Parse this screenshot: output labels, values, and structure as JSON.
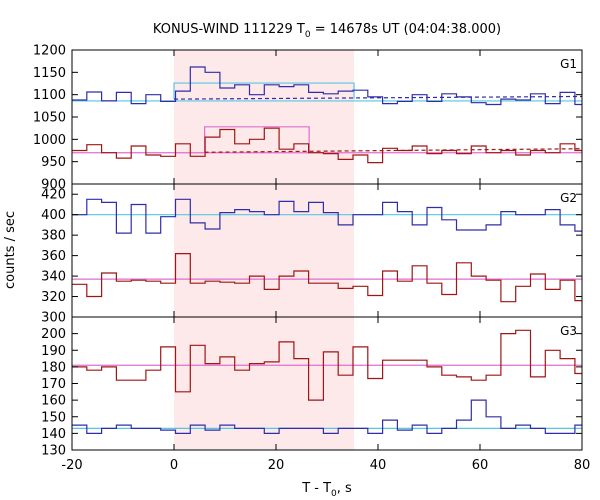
{
  "chart_data": {
    "type": "line",
    "title": "KONUS-WIND 111229 T",
    "title_sub": "0",
    "title_rest": " = 14678s UT (04:04:38.000)",
    "xlabel": "T - T",
    "xlabel_sub": "0",
    "xlabel_rest": ", s",
    "ylabel": "counts / sec",
    "xlim": [
      -20,
      80
    ],
    "xticks": [
      -20,
      0,
      20,
      40,
      60,
      80
    ],
    "xtick_labels": [
      "-20",
      "0",
      "20",
      "40",
      "60",
      "80"
    ],
    "shaded_interval": [
      0,
      35.3
    ],
    "colors": {
      "high_series": "#2e2eaa",
      "low_series": "#a01515",
      "high_background": "#55c7e2",
      "low_background": "#e06ed0",
      "shade": "#fde8ea"
    },
    "panels": [
      {
        "label": "G1",
        "ylim": [
          900,
          1200
        ],
        "yticks": [
          950,
          1000,
          1050,
          1100,
          1150,
          1200
        ],
        "ytick_labels": [
          "950",
          "1000",
          "1050",
          "1100",
          "1150",
          "1200"
        ],
        "bottom_tick_label": "900",
        "bin_edges": [
          -20,
          -17.1,
          -14.2,
          -11.3,
          -8.4,
          -5.5,
          -2.6,
          0.3,
          3.2,
          6.1,
          9.0,
          11.9,
          14.8,
          17.7,
          20.6,
          23.5,
          26.4,
          29.3,
          32.2,
          35.1,
          38.0,
          40.9,
          43.8,
          46.7,
          49.6,
          52.5,
          55.4,
          58.3,
          61.2,
          64.1,
          67.0,
          69.9,
          72.8,
          75.7,
          78.6,
          80
        ],
        "high_values": [
          1088,
          1106,
          1086,
          1105,
          1080,
          1100,
          1085,
          1108,
          1162,
          1150,
          1115,
          1122,
          1100,
          1122,
          1118,
          1122,
          1105,
          1102,
          1108,
          1110,
          1095,
          1080,
          1085,
          1100,
          1085,
          1102,
          1095,
          1082,
          1078,
          1090,
          1088,
          1102,
          1080,
          1105,
          1078
        ],
        "low_values": [
          975,
          988,
          970,
          958,
          985,
          965,
          962,
          990,
          962,
          1005,
          1022,
          990,
          1000,
          1025,
          978,
          990,
          970,
          968,
          955,
          965,
          948,
          980,
          975,
          985,
          968,
          975,
          968,
          985,
          970,
          975,
          965,
          975,
          970,
          990,
          975
        ],
        "high_bg": 1086,
        "low_bg": 970,
        "high_box": {
          "x0": 0,
          "x1": 35.3,
          "level": 1126,
          "bg": 1090
        },
        "low_box": {
          "x0": 6,
          "x1": 26.5,
          "level": 1028,
          "bg": 971
        },
        "dashed_extend_to": 80,
        "high_dashed_right": 1096,
        "low_dashed_right": 979
      },
      {
        "label": "G2",
        "ylim": [
          300,
          430
        ],
        "yticks": [
          320,
          340,
          360,
          380,
          400,
          420
        ],
        "ytick_labels": [
          "320",
          "340",
          "360",
          "380",
          "400",
          "420"
        ],
        "bottom_tick_label": "300",
        "bin_edges": [
          -20,
          -17.1,
          -14.2,
          -11.3,
          -8.4,
          -5.5,
          -2.6,
          0.3,
          3.2,
          6.1,
          9.0,
          11.9,
          14.8,
          17.7,
          20.6,
          23.5,
          26.4,
          29.3,
          32.2,
          35.1,
          38.0,
          40.9,
          43.8,
          46.7,
          49.6,
          52.5,
          55.4,
          58.3,
          61.2,
          64.1,
          67.0,
          69.9,
          72.8,
          75.7,
          78.6,
          80
        ],
        "high_values": [
          400,
          415,
          412,
          382,
          410,
          382,
          398,
          415,
          392,
          386,
          402,
          405,
          403,
          400,
          413,
          403,
          412,
          402,
          390,
          400,
          400,
          412,
          403,
          390,
          407,
          395,
          385,
          385,
          390,
          403,
          400,
          400,
          405,
          390,
          384
        ],
        "low_values": [
          332,
          320,
          343,
          335,
          336,
          335,
          333,
          362,
          333,
          335,
          334,
          333,
          340,
          327,
          340,
          345,
          333,
          333,
          328,
          330,
          321,
          345,
          335,
          350,
          333,
          322,
          353,
          340,
          336,
          315,
          330,
          342,
          327,
          336,
          316
        ],
        "high_bg": 400,
        "low_bg": 337
      },
      {
        "label": "G3",
        "ylim": [
          130,
          210
        ],
        "yticks": [
          140,
          150,
          160,
          170,
          180,
          190,
          200
        ],
        "ytick_labels": [
          "140",
          "150",
          "160",
          "170",
          "180",
          "190",
          "200"
        ],
        "bottom_tick_label": "130",
        "bin_edges": [
          -20,
          -17.1,
          -14.2,
          -11.3,
          -8.4,
          -5.5,
          -2.6,
          0.3,
          3.2,
          6.1,
          9.0,
          11.9,
          14.8,
          17.7,
          20.6,
          23.5,
          26.4,
          29.3,
          32.2,
          35.1,
          38.0,
          40.9,
          43.8,
          46.7,
          49.6,
          52.5,
          55.4,
          58.3,
          61.2,
          64.1,
          67.0,
          69.9,
          72.8,
          75.7,
          78.6,
          80
        ],
        "high_values": [
          145,
          140,
          143,
          145,
          143,
          143,
          142,
          140,
          145,
          142,
          145,
          143,
          143,
          140,
          143,
          143,
          143,
          140,
          143,
          143,
          140,
          148,
          142,
          145,
          140,
          143,
          148,
          160,
          150,
          143,
          145,
          143,
          140,
          140,
          145
        ],
        "low_values": [
          180,
          178,
          180,
          172,
          172,
          178,
          192,
          165,
          193,
          182,
          186,
          178,
          182,
          183,
          195,
          185,
          160,
          189,
          175,
          192,
          173,
          184,
          184,
          184,
          180,
          175,
          174,
          172,
          175,
          200,
          202,
          174,
          190,
          185,
          176
        ],
        "high_bg": 143,
        "low_bg": 181
      }
    ]
  }
}
